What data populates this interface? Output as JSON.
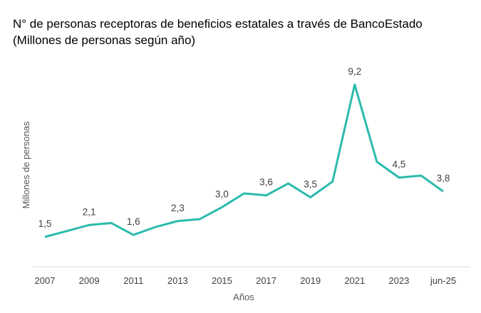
{
  "chart_data": {
    "type": "line",
    "title": "N° de personas receptoras de beneficios estatales a través de BancoEstado",
    "subtitle": "(Millones de personas según año)",
    "xlabel": "Años",
    "ylabel": "Millones de personas",
    "categories": [
      "2007",
      "2008",
      "2009",
      "2010",
      "2011",
      "2012",
      "2013",
      "2014",
      "2015",
      "2016",
      "2017",
      "2018",
      "2019",
      "2020",
      "2021",
      "2022",
      "2023",
      "2024",
      "jun-25"
    ],
    "tick_labels": [
      "2007",
      "2009",
      "2011",
      "2013",
      "2015",
      "2017",
      "2019",
      "2021",
      "2023",
      "jun-25"
    ],
    "values": [
      1.5,
      1.8,
      2.1,
      2.2,
      1.6,
      2.0,
      2.3,
      2.4,
      3.0,
      3.7,
      3.6,
      4.2,
      3.5,
      4.3,
      9.2,
      5.3,
      4.5,
      4.6,
      3.8
    ],
    "data_labels": [
      {
        "index": 0,
        "text": "1,5"
      },
      {
        "index": 2,
        "text": "2,1"
      },
      {
        "index": 4,
        "text": "1,6"
      },
      {
        "index": 6,
        "text": "2,3"
      },
      {
        "index": 8,
        "text": "3,0"
      },
      {
        "index": 10,
        "text": "3,6"
      },
      {
        "index": 12,
        "text": "3,5"
      },
      {
        "index": 14,
        "text": "9,2"
      },
      {
        "index": 16,
        "text": "4,5"
      },
      {
        "index": 18,
        "text": "3,8"
      }
    ],
    "ylim": [
      0,
      10
    ],
    "grid": false,
    "line_color": "#2BBBAD",
    "axis_color": "#D9D9D9"
  }
}
